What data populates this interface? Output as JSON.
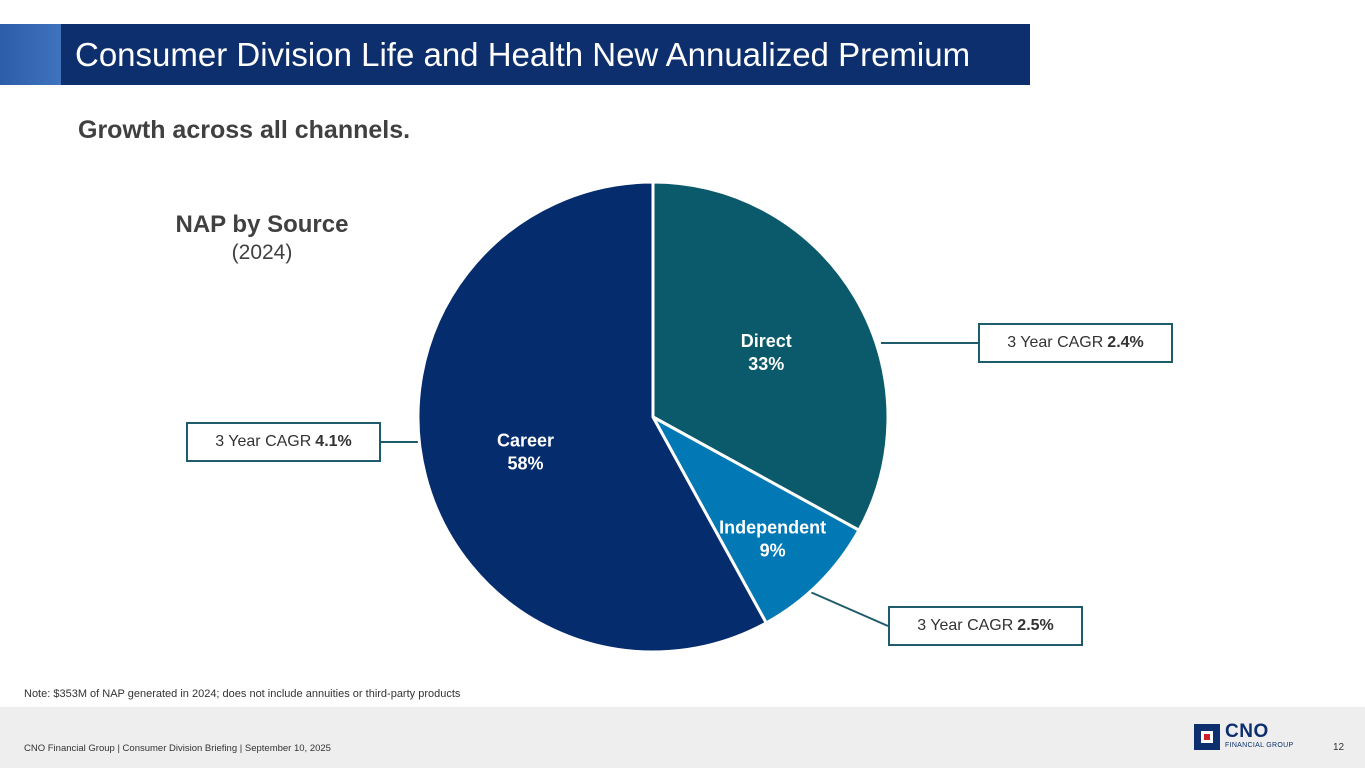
{
  "header": {
    "title": "Consumer Division Life and Health New Annualized Premium"
  },
  "subtitle": "Growth across all channels.",
  "chart_data": {
    "type": "pie",
    "title": "NAP by Source",
    "subtitle": "(2024)",
    "slices": [
      {
        "name": "Direct",
        "value": 33,
        "label": "33%",
        "color": "#0a5a6b",
        "cagr_label": "3 Year CAGR",
        "cagr_value": "2.4%"
      },
      {
        "name": "Independent",
        "value": 9,
        "label": "9%",
        "color": "#0278b5",
        "cagr_label": "3 Year CAGR",
        "cagr_value": "2.5%"
      },
      {
        "name": "Career",
        "value": 58,
        "label": "58%",
        "color": "#052d6e",
        "cagr_label": "3 Year CAGR",
        "cagr_value": "4.1%"
      }
    ]
  },
  "note": "Note: $353M of NAP generated in 2024; does not include annuities or third-party products",
  "footer": {
    "text": "CNO Financial Group  |  Consumer Division Briefing  |  September 10, 2025",
    "logo_name": "CNO",
    "logo_sub": "FINANCIAL GROUP",
    "page_number": "12"
  }
}
